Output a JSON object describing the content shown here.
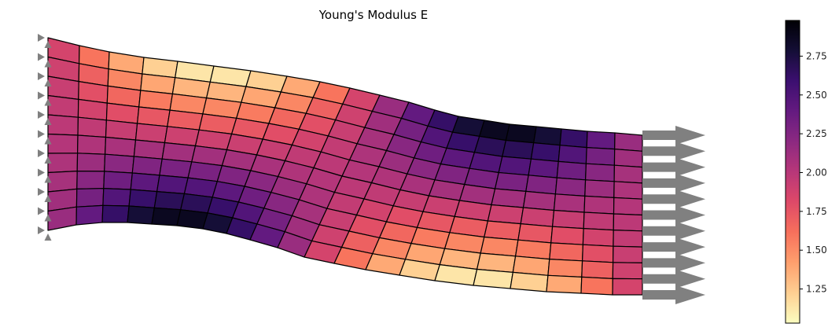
{
  "chart_data": {
    "type": "heatmap",
    "title": "Young's Modulus E",
    "colormap": "magma_r",
    "colorbar": {
      "vmin": 1.03,
      "vmax": 2.98,
      "ticks": [
        1.25,
        1.5,
        1.75,
        2.0,
        2.25,
        2.5,
        2.75
      ],
      "tick_labels": [
        "1.25",
        "1.50",
        "1.75",
        "2.00",
        "2.25",
        "2.50",
        "2.75"
      ]
    },
    "mesh": {
      "columns": 20,
      "rows": 10
    },
    "supports": {
      "count": 11,
      "color": "#808080"
    },
    "loads": {
      "count": 11,
      "direction": "right",
      "color": "#808080"
    },
    "E": [
      [
        1.86,
        1.6,
        1.38,
        1.22,
        1.13,
        1.13,
        1.22,
        1.38,
        1.6,
        1.86,
        2.14,
        2.4,
        2.62,
        2.78,
        2.87,
        2.87,
        2.78,
        2.62,
        2.4,
        2.14
      ],
      [
        1.89,
        1.69,
        1.52,
        1.39,
        1.33,
        1.33,
        1.39,
        1.52,
        1.69,
        1.89,
        2.11,
        2.31,
        2.48,
        2.61,
        2.67,
        2.67,
        2.61,
        2.48,
        2.31,
        2.11
      ],
      [
        1.92,
        1.78,
        1.66,
        1.57,
        1.52,
        1.52,
        1.57,
        1.66,
        1.78,
        1.92,
        2.08,
        2.22,
        2.34,
        2.43,
        2.48,
        2.48,
        2.43,
        2.34,
        2.22,
        2.08
      ],
      [
        1.95,
        1.87,
        1.79,
        1.74,
        1.71,
        1.71,
        1.74,
        1.79,
        1.87,
        1.95,
        2.05,
        2.13,
        2.21,
        2.26,
        2.29,
        2.29,
        2.26,
        2.21,
        2.13,
        2.05
      ],
      [
        1.98,
        1.96,
        1.93,
        1.91,
        1.9,
        1.9,
        1.91,
        1.93,
        1.96,
        1.98,
        2.02,
        2.04,
        2.07,
        2.09,
        2.1,
        2.1,
        2.09,
        2.07,
        2.04,
        2.02
      ],
      [
        2.02,
        2.04,
        2.07,
        2.09,
        2.1,
        2.1,
        2.09,
        2.07,
        2.04,
        2.02,
        1.98,
        1.96,
        1.93,
        1.91,
        1.9,
        1.9,
        1.91,
        1.93,
        1.96,
        1.98
      ],
      [
        2.05,
        2.13,
        2.21,
        2.26,
        2.29,
        2.29,
        2.26,
        2.21,
        2.13,
        2.05,
        1.95,
        1.87,
        1.79,
        1.74,
        1.71,
        1.71,
        1.74,
        1.79,
        1.87,
        1.95
      ],
      [
        2.08,
        2.22,
        2.34,
        2.43,
        2.48,
        2.48,
        2.43,
        2.34,
        2.22,
        2.08,
        1.92,
        1.78,
        1.66,
        1.57,
        1.52,
        1.52,
        1.57,
        1.66,
        1.78,
        1.92
      ],
      [
        2.11,
        2.31,
        2.48,
        2.61,
        2.67,
        2.67,
        2.61,
        2.48,
        2.31,
        2.11,
        1.89,
        1.69,
        1.52,
        1.39,
        1.33,
        1.33,
        1.39,
        1.52,
        1.69,
        1.89
      ],
      [
        2.14,
        2.4,
        2.62,
        2.78,
        2.87,
        2.87,
        2.78,
        2.62,
        2.4,
        2.14,
        1.86,
        1.6,
        1.38,
        1.22,
        1.13,
        1.13,
        1.22,
        1.38,
        1.6,
        1.86
      ]
    ]
  }
}
